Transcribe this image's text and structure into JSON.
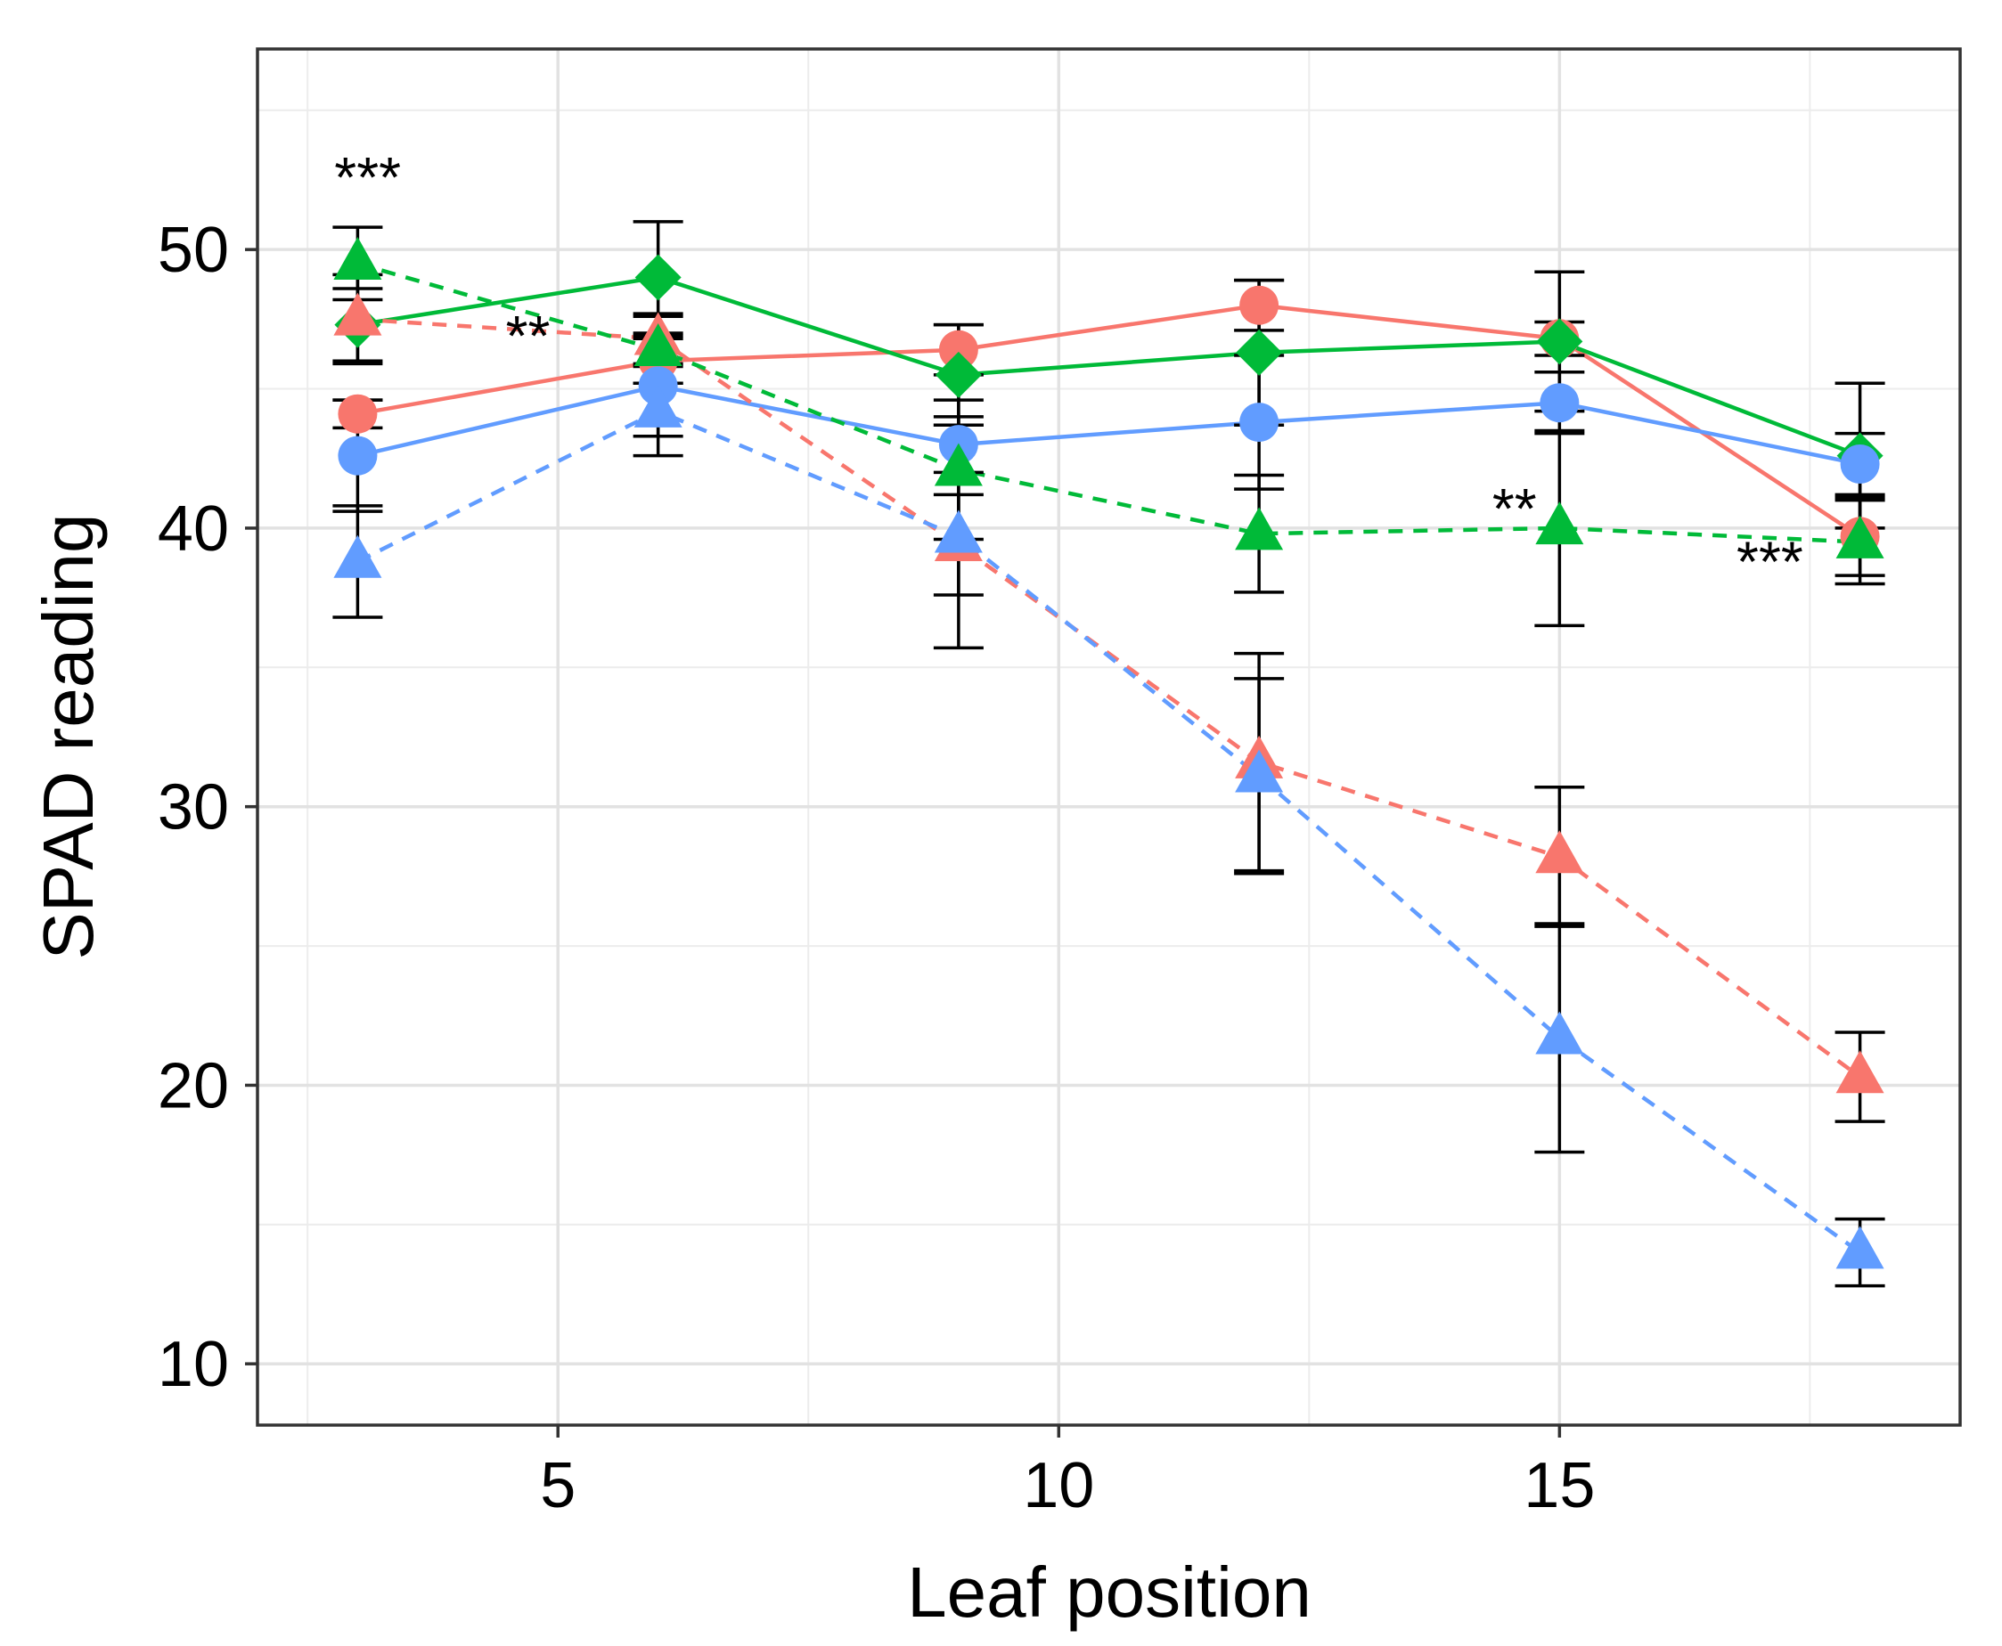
{
  "chart_data": {
    "type": "line",
    "title": "",
    "xlabel": "Leaf position",
    "ylabel": "SPAD reading",
    "xlim": [
      2,
      19
    ],
    "ylim": [
      7.8,
      57.2
    ],
    "x_ticks": [
      5,
      10,
      15
    ],
    "y_ticks": [
      10,
      20,
      30,
      40,
      50
    ],
    "grid": true,
    "legend": "none",
    "x": [
      3,
      6,
      9,
      12,
      15,
      18
    ],
    "colors": {
      "red": "#F8766D",
      "green": "#00BA38",
      "blue": "#619CFF",
      "error": "#000000"
    },
    "series": [
      {
        "name": "red-solid-circle",
        "color": "red",
        "line": "solid",
        "marker": "circle",
        "values": [
          44.1,
          46.0,
          46.4,
          48.0,
          46.8,
          39.7
        ],
        "err": [
          0.5,
          0.8,
          0.9,
          0.9,
          0.6,
          1.4
        ]
      },
      {
        "name": "green-solid-diamond",
        "color": "green",
        "line": "solid",
        "marker": "diamond",
        "values": [
          47.3,
          49.0,
          45.5,
          46.3,
          46.7,
          42.6
        ],
        "err": [
          1.3,
          2.0,
          1.8,
          2.6,
          2.5,
          2.6
        ]
      },
      {
        "name": "blue-solid-circle",
        "color": "blue",
        "line": "solid",
        "marker": "circle",
        "values": [
          42.6,
          45.1,
          43.0,
          43.8,
          44.5,
          42.3
        ],
        "err": [
          2.0,
          1.8,
          1.0,
          2.4,
          1.1,
          1.1
        ]
      },
      {
        "name": "red-dashed-triangle",
        "color": "red",
        "line": "dashed",
        "marker": "triangle",
        "values": [
          47.5,
          46.8,
          39.4,
          31.6,
          28.2,
          20.3
        ],
        "err": [
          1.6,
          0.9,
          1.8,
          3.9,
          2.5,
          1.6
        ]
      },
      {
        "name": "green-dashed-triangle",
        "color": "green",
        "line": "dashed",
        "marker": "triangle",
        "values": [
          49.5,
          46.4,
          42.1,
          39.8,
          40.0,
          39.5
        ],
        "err": [
          1.3,
          1.2,
          2.5,
          2.1,
          3.5,
          1.5
        ]
      },
      {
        "name": "blue-dashed-triangle",
        "color": "blue",
        "line": "dashed",
        "marker": "triangle",
        "values": [
          38.8,
          44.2,
          39.7,
          31.1,
          21.7,
          14.0
        ],
        "err": [
          2.0,
          1.6,
          4.0,
          3.5,
          4.1,
          1.2
        ]
      }
    ],
    "annotations": [
      {
        "text": "***",
        "x": 3.1,
        "y": 51.9
      },
      {
        "text": "**",
        "x": 4.7,
        "y": 46.2
      },
      {
        "text": "**",
        "x": 14.55,
        "y": 40.0
      },
      {
        "text": "***",
        "x": 17.1,
        "y": 38.1
      }
    ]
  }
}
